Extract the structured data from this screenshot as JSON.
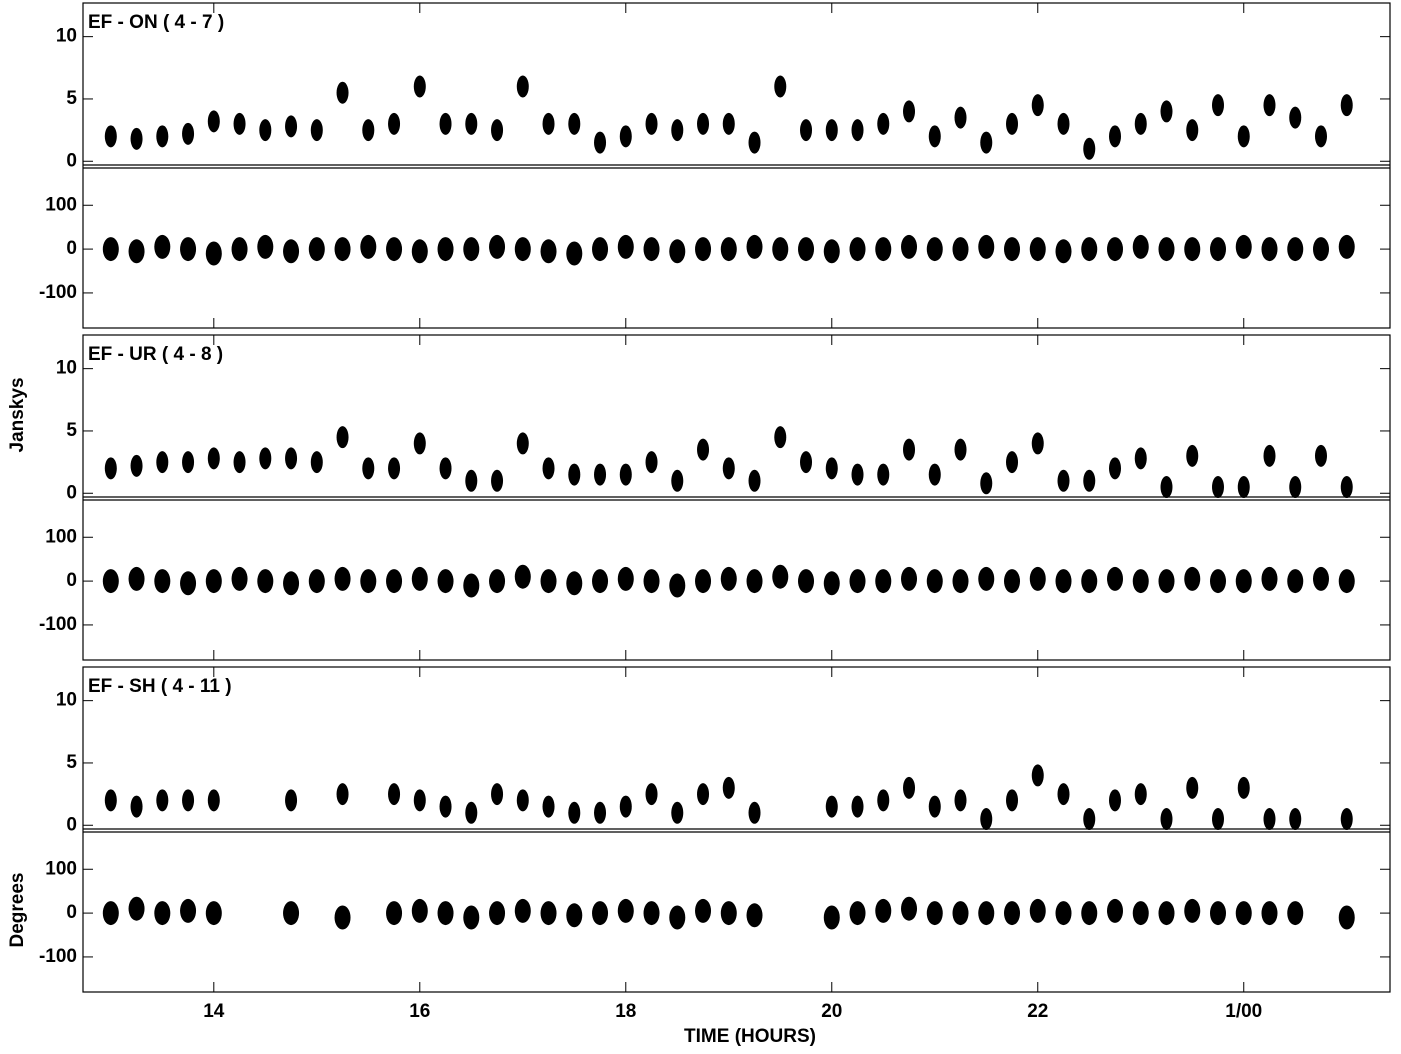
{
  "chart_data": [
    {
      "type": "scatter",
      "title": "EF - ON ( 4 - 7 )",
      "x": [
        13,
        13.25,
        13.5,
        13.75,
        14,
        14.25,
        14.5,
        14.75,
        15,
        15.25,
        15.5,
        15.75,
        16,
        16.25,
        16.5,
        16.75,
        17,
        17.25,
        17.5,
        17.75,
        18,
        18.25,
        18.5,
        18.75,
        19,
        19.25,
        19.5,
        19.75,
        20,
        20.25,
        20.5,
        20.75,
        21,
        21.25,
        21.5,
        21.75,
        22,
        22.25,
        22.5,
        22.75,
        23,
        23.25,
        23.5,
        23.75,
        24,
        24.25,
        24.5,
        24.75,
        25
      ],
      "xlim": [
        12.73,
        25.42
      ],
      "xticks": [
        14,
        16,
        18,
        20,
        22,
        {
          "value": 24,
          "label": "1/00"
        }
      ],
      "amplitude": {
        "ylim": [
          -0.3,
          12.7
        ],
        "yticks": [
          0,
          5,
          10
        ],
        "values": [
          2,
          1.8,
          2,
          2.2,
          3.2,
          3,
          2.5,
          2.8,
          2.5,
          5.5,
          2.5,
          3,
          6,
          3,
          3,
          2.5,
          6,
          3,
          3,
          1.5,
          2,
          3,
          2.5,
          3,
          3,
          1.5,
          6,
          2.5,
          2.5,
          2.5,
          3,
          4,
          2,
          3.5,
          1.5,
          3,
          4.5,
          3,
          1,
          2,
          3,
          4,
          2.5,
          4.5,
          2,
          4.5,
          3.5,
          2,
          4.5
        ]
      },
      "phase": {
        "ylim": [
          -180,
          185
        ],
        "yticks": [
          -100,
          0,
          100
        ],
        "values": [
          0,
          -5,
          5,
          0,
          -10,
          0,
          5,
          -5,
          0,
          0,
          5,
          0,
          -5,
          0,
          0,
          5,
          0,
          -5,
          -10,
          0,
          5,
          0,
          -5,
          0,
          0,
          5,
          0,
          0,
          -5,
          0,
          0,
          5,
          0,
          0,
          5,
          0,
          0,
          -5,
          0,
          0,
          5,
          0,
          0,
          0,
          5,
          0,
          0,
          0,
          5
        ]
      }
    },
    {
      "type": "scatter",
      "title": "EF - UR ( 4 - 8 )",
      "ylabel": "Janskys",
      "x": [
        13,
        13.25,
        13.5,
        13.75,
        14,
        14.25,
        14.5,
        14.75,
        15,
        15.25,
        15.5,
        15.75,
        16,
        16.25,
        16.5,
        16.75,
        17,
        17.25,
        17.5,
        17.75,
        18,
        18.25,
        18.5,
        18.75,
        19,
        19.25,
        19.5,
        19.75,
        20,
        20.25,
        20.5,
        20.75,
        21,
        21.25,
        21.5,
        21.75,
        22,
        22.25,
        22.5,
        22.75,
        23,
        23.25,
        23.5,
        23.75,
        24,
        24.25,
        24.5,
        24.75,
        25
      ],
      "xlim": [
        12.73,
        25.42
      ],
      "xticks": [
        14,
        16,
        18,
        20,
        22,
        {
          "value": 24,
          "label": "1/00"
        }
      ],
      "amplitude": {
        "ylim": [
          -0.3,
          12.7
        ],
        "yticks": [
          0,
          5,
          10
        ],
        "values": [
          2,
          2.2,
          2.5,
          2.5,
          2.8,
          2.5,
          2.8,
          2.8,
          2.5,
          4.5,
          2,
          2,
          4,
          2,
          1,
          1,
          4,
          2,
          1.5,
          1.5,
          1.5,
          2.5,
          1,
          3.5,
          2,
          1,
          4.5,
          2.5,
          2,
          1.5,
          1.5,
          3.5,
          1.5,
          3.5,
          0.8,
          2.5,
          4,
          1,
          1,
          2,
          2.8,
          0.5,
          3,
          0.5,
          0.5,
          3,
          0.5,
          3,
          0.5
        ]
      },
      "phase": {
        "ylim": [
          -180,
          185
        ],
        "yticks": [
          -100,
          0,
          100
        ],
        "values": [
          0,
          5,
          0,
          -5,
          0,
          5,
          0,
          -5,
          0,
          5,
          0,
          0,
          5,
          0,
          -10,
          0,
          10,
          0,
          -5,
          0,
          5,
          0,
          -10,
          0,
          5,
          0,
          10,
          0,
          -5,
          0,
          0,
          5,
          0,
          0,
          5,
          0,
          5,
          0,
          0,
          5,
          0,
          0,
          5,
          0,
          0,
          5,
          0,
          5,
          0
        ]
      }
    },
    {
      "type": "scatter",
      "title": "EF - SH ( 4 - 11 )",
      "ylabel": "Degrees",
      "xlabel": "TIME (HOURS)",
      "x": [
        13,
        13.25,
        13.5,
        13.75,
        14,
        14.25,
        14.5,
        14.75,
        15,
        15.25,
        15.5,
        15.75,
        16,
        16.25,
        16.5,
        16.75,
        17,
        17.25,
        17.5,
        17.75,
        18,
        18.25,
        18.5,
        18.75,
        19,
        19.25,
        19.5,
        19.75,
        20,
        20.25,
        20.5,
        20.75,
        21,
        21.25,
        21.5,
        21.75,
        22,
        22.25,
        22.5,
        22.75,
        23,
        23.25,
        23.5,
        23.75,
        24,
        24.25,
        24.5,
        24.75,
        25
      ],
      "xlim": [
        12.73,
        25.42
      ],
      "xticks": [
        14,
        16,
        18,
        20,
        22,
        {
          "value": 24,
          "label": "1/00"
        }
      ],
      "amplitude": {
        "ylim": [
          -0.3,
          12.7
        ],
        "yticks": [
          0,
          5,
          10
        ],
        "values": [
          2,
          1.5,
          2,
          2,
          2,
          null,
          null,
          2,
          null,
          2.5,
          null,
          2.5,
          2,
          1.5,
          1,
          2.5,
          2,
          1.5,
          1,
          1,
          1.5,
          2.5,
          1,
          2.5,
          3,
          1,
          null,
          null,
          1.5,
          1.5,
          2,
          3,
          1.5,
          2,
          0.5,
          2,
          4,
          2.5,
          0.5,
          2,
          2.5,
          0.5,
          3,
          0.5,
          3,
          0.5,
          0.5,
          null,
          0.5
        ]
      },
      "phase": {
        "ylim": [
          -180,
          185
        ],
        "yticks": [
          -100,
          0,
          100
        ],
        "values": [
          0,
          10,
          0,
          5,
          0,
          null,
          null,
          0,
          null,
          -10,
          null,
          0,
          5,
          0,
          -10,
          0,
          5,
          0,
          -5,
          0,
          5,
          0,
          -10,
          5,
          0,
          -5,
          null,
          null,
          -10,
          0,
          5,
          10,
          0,
          0,
          0,
          0,
          5,
          0,
          0,
          5,
          0,
          0,
          5,
          0,
          0,
          0,
          0,
          null,
          -10
        ]
      }
    }
  ]
}
